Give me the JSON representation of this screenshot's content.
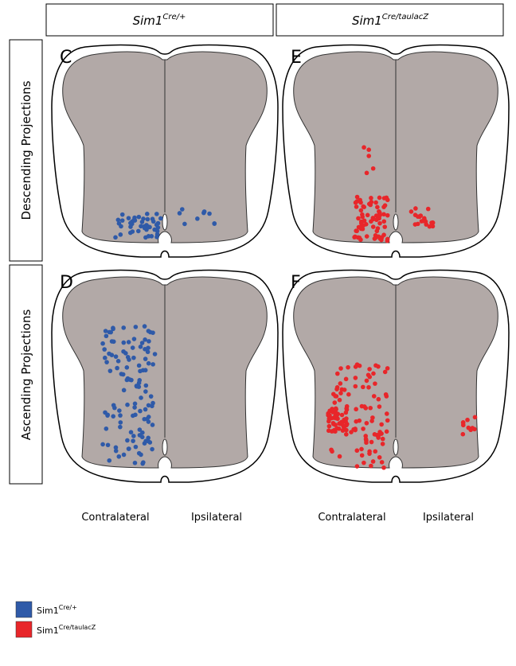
{
  "columns": [
    {
      "name": "Sim1",
      "superscript": "Cre/+"
    },
    {
      "name": "Sim1",
      "superscript": "Cre/taulacZ"
    }
  ],
  "rows": [
    "Descending Projections",
    "Ascending Projections"
  ],
  "panels": [
    {
      "label": "C"
    },
    {
      "label": "E"
    },
    {
      "label": "D"
    },
    {
      "label": "F"
    }
  ],
  "side_labels": [
    [
      "Contralateral",
      "Ipsilateral"
    ],
    [
      "Contralateral",
      "Ipsilateral"
    ]
  ],
  "legend": [
    {
      "name": "Sim1",
      "superscript": "Cre/+",
      "color": "#2f5aa8"
    },
    {
      "name": "Sim1",
      "superscript": "Cre/taulacZ",
      "color": "#e8262a"
    }
  ]
}
